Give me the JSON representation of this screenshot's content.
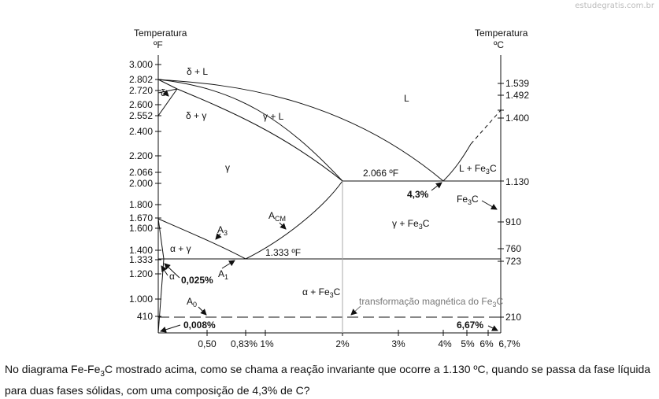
{
  "watermark": "estudegratis.com.br",
  "axes": {
    "left_title": "Temperatura",
    "left_unit": "ºF",
    "right_title": "Temperatura",
    "right_unit": "ºC"
  },
  "left_ticks": [
    "3.000",
    "2.802",
    "2.720",
    "2.600",
    "2.552",
    "2.400",
    "2.200",
    "2.066",
    "2.000",
    "1.800",
    "1.670",
    "1.600",
    "1.400",
    "1.333",
    "1.200",
    "1.000",
    "410"
  ],
  "right_ticks": [
    "1.539",
    "1.492",
    "1.400",
    "1.130",
    "910",
    "760",
    "723",
    "210"
  ],
  "bottom_ticks": [
    "0,50",
    "0,83%",
    "1%",
    "2%",
    "3%",
    "4%",
    "5%",
    "6%",
    "6,7%"
  ],
  "phases": {
    "delta_L": "δ + L",
    "delta": "δ",
    "delta_gamma": "δ + γ",
    "gamma_L": "γ + L",
    "L": "L",
    "gamma": "γ",
    "L_Fe3C": "L + Fe",
    "gamma_Fe3C": "γ + Fe",
    "alpha_gamma": "α + γ",
    "alpha": "α",
    "alpha_Fe3C": "α + Fe",
    "Fe3C": "Fe"
  },
  "sub_fe3c": "3",
  "sub_c": "C",
  "annotations": {
    "eutectic_temp": "2.066 ºF",
    "eutectic_comp": "4,3%",
    "eutectoid_temp": "1.333 ºF",
    "alpha_sol": "0,025%",
    "alpha_low": "0,008%",
    "fe3c_comp": "6,67%",
    "A3": "A",
    "A3_sub": "3",
    "Acm": "A",
    "Acm_sub": "CM",
    "A1": "A",
    "A1_sub": "1",
    "A0": "A",
    "A0_sub": "0",
    "magnetic": "transformação magnética do Fe"
  },
  "question": {
    "part1": "No diagrama Fe-Fe",
    "sub": "3",
    "part2": "C mostrado acima, como se chama a reação invariante que ocorre a 1.130 ºC, quando  se passa da fase líquida para duas fases sólidas, com uma composição de 4,3% de C?"
  }
}
